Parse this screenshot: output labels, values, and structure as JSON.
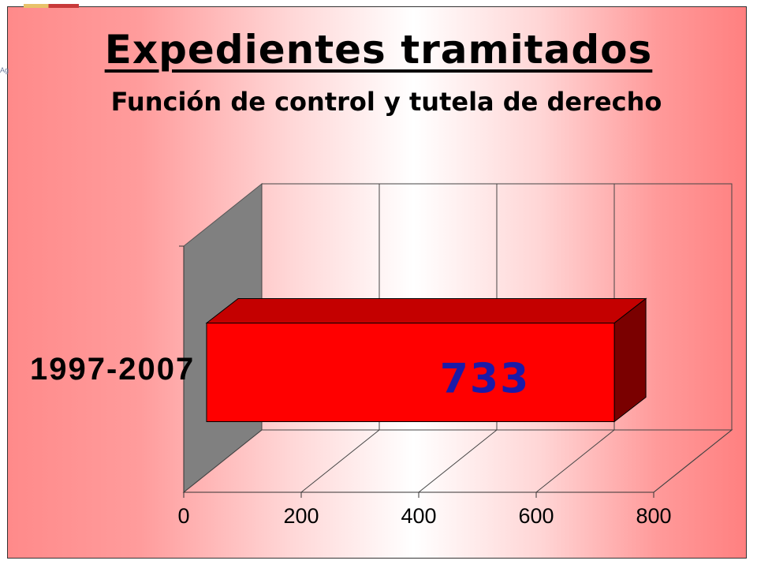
{
  "chart_data": {
    "type": "bar",
    "orientation": "horizontal",
    "style": "3d",
    "title": "Expedientes tramitados",
    "subtitle": "Función de control y tutela de derecho",
    "categories": [
      "1997-2007"
    ],
    "values": [
      733
    ],
    "data_labels": [
      "733"
    ],
    "xlim": [
      0,
      800
    ],
    "x_ticks": [
      0,
      200,
      400,
      600,
      800
    ],
    "tick_labels": [
      "0",
      "200",
      "400",
      "600",
      "800"
    ],
    "grid": true,
    "legend": "none"
  },
  "colors": {
    "bar_front": "#ff0000",
    "bar_top": "#c40000",
    "bar_side": "#7a0000",
    "data_label": "#1a1aa8",
    "side_wall": "#808080"
  }
}
